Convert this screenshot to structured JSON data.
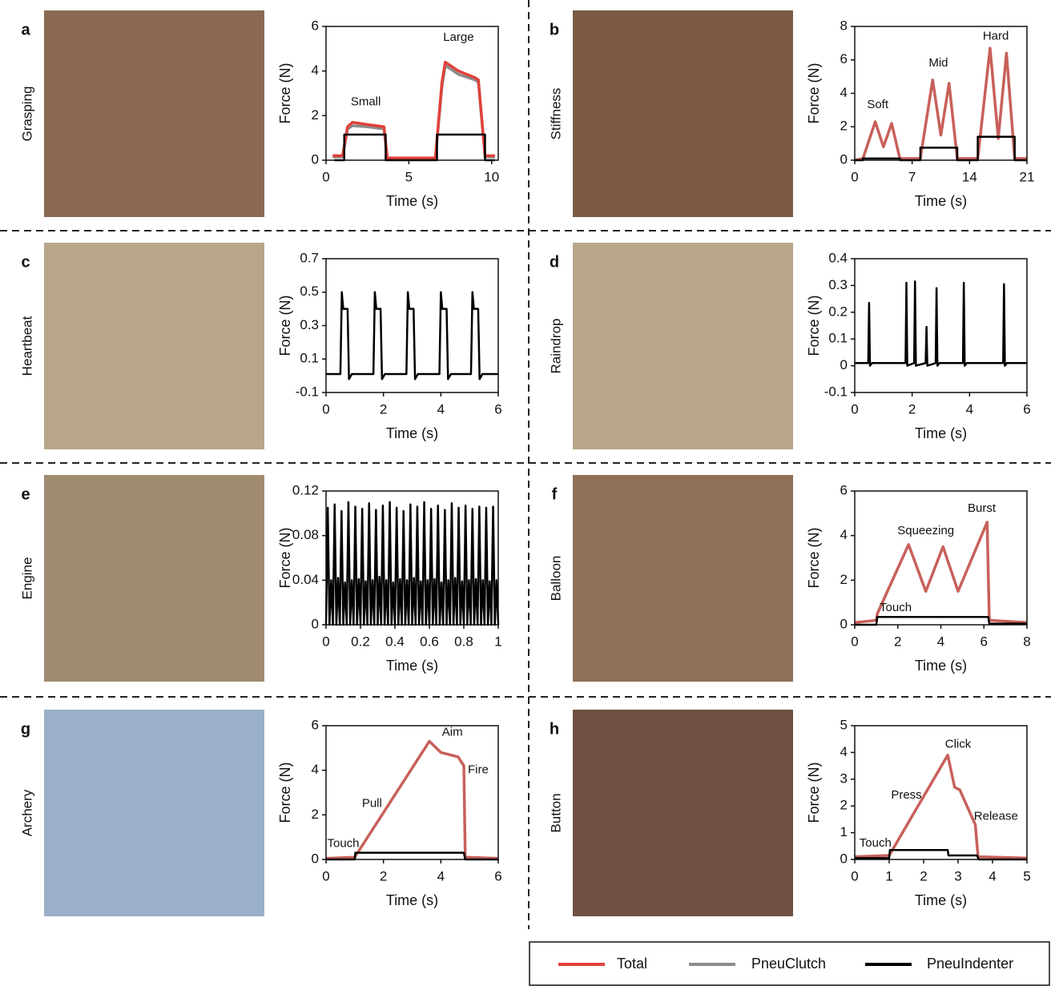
{
  "chart_data": [
    {
      "type": "line",
      "panel": "a",
      "label": "Grasping",
      "xlabel": "Time (s)",
      "ylabel": "Force (N)",
      "xlim": [
        0,
        10.4
      ],
      "xticks": [
        0,
        5,
        10
      ],
      "ylim": [
        0,
        6
      ],
      "yticks": [
        0,
        2,
        4,
        6
      ],
      "series": [
        {
          "color": "#8c8c8c",
          "x": [
            0.4,
            0.9,
            1.0,
            1.3,
            1.6,
            2.5,
            3.5,
            3.7,
            5.6,
            6.0,
            6.6,
            7.0,
            7.2,
            8.0,
            9.0,
            9.2,
            9.6,
            10.2
          ],
          "values": [
            0.15,
            0.15,
            0.15,
            1.4,
            1.55,
            1.5,
            1.4,
            0.05,
            0.05,
            0.05,
            0.05,
            3.3,
            4.25,
            3.85,
            3.6,
            3.5,
            0.15,
            0.15
          ]
        },
        {
          "color": "#e0413a",
          "x": [
            0.4,
            0.9,
            1.0,
            1.3,
            1.6,
            2.5,
            3.5,
            3.7,
            5.6,
            6.0,
            6.6,
            7.0,
            7.2,
            8.0,
            9.0,
            9.2,
            9.6,
            10.2
          ],
          "values": [
            0.2,
            0.2,
            0.2,
            1.5,
            1.7,
            1.6,
            1.5,
            0.1,
            0.1,
            0.1,
            0.1,
            3.5,
            4.4,
            4.0,
            3.7,
            3.6,
            0.2,
            0.2
          ]
        },
        {
          "color": "#000000",
          "x": [
            0.5,
            1.1,
            1.1,
            3.6,
            3.6,
            6.7,
            6.7,
            9.6,
            9.6,
            10.2
          ],
          "values": [
            0,
            0,
            1.15,
            1.15,
            0,
            0,
            1.15,
            1.15,
            0,
            0
          ]
        }
      ],
      "annotations": [
        {
          "text": "Small",
          "x": 2.4,
          "y": 2.6
        },
        {
          "text": "Large",
          "x": 8,
          "y": 5.5
        }
      ]
    },
    {
      "type": "line",
      "panel": "b",
      "label": "Stiffness",
      "xlabel": "Time (s)",
      "ylabel": "Force (N)",
      "xlim": [
        0,
        21
      ],
      "xticks": [
        0,
        7,
        14,
        21
      ],
      "ylim": [
        0,
        8
      ],
      "yticks": [
        0,
        2,
        4,
        6,
        8
      ],
      "series": [
        {
          "color": "#c8605a",
          "x": [
            0,
            1,
            2.5,
            3.5,
            4.5,
            5.5,
            8,
            9.5,
            10.5,
            11.5,
            12.5,
            15,
            16.5,
            17.5,
            18.5,
            19.5,
            21
          ],
          "values": [
            0,
            0.1,
            2.3,
            0.8,
            2.2,
            0.1,
            0.1,
            4.8,
            1.5,
            4.6,
            0.1,
            0.1,
            6.7,
            1.3,
            6.4,
            0.1,
            0.1
          ]
        },
        {
          "color": "#000000",
          "x": [
            0,
            1,
            1,
            5.5,
            5.5,
            8,
            8,
            12.5,
            12.5,
            15,
            15,
            19.5,
            19.5,
            21
          ],
          "values": [
            0,
            0,
            0.1,
            0.1,
            0,
            0,
            0.75,
            0.75,
            0,
            0,
            1.4,
            1.4,
            0,
            0
          ]
        }
      ],
      "annotations": [
        {
          "text": "Soft",
          "x": 2.8,
          "y": 3.3
        },
        {
          "text": "Mid",
          "x": 10.2,
          "y": 5.8
        },
        {
          "text": "Hard",
          "x": 17.2,
          "y": 7.4
        }
      ]
    },
    {
      "type": "line",
      "panel": "c",
      "label": "Heartbeat",
      "xlabel": "Time (s)",
      "ylabel": "Force (N)",
      "xlim": [
        0,
        6
      ],
      "xticks": [
        0,
        2,
        4,
        6
      ],
      "ylim": [
        -0.1,
        0.7
      ],
      "yticks": [
        -0.1,
        0.1,
        0.3,
        0.5,
        0.7
      ],
      "series": [
        {
          "color": "#000000",
          "x": [
            0,
            0.5,
            0.55,
            0.6,
            0.75,
            0.8,
            0.9,
            1.65,
            1.7,
            1.75,
            1.9,
            1.95,
            2.05,
            2.8,
            2.85,
            2.9,
            3.05,
            3.1,
            3.2,
            3.95,
            4.0,
            4.05,
            4.2,
            4.25,
            4.35,
            5.05,
            5.1,
            5.15,
            5.3,
            5.35,
            5.45,
            6
          ],
          "values": [
            0.01,
            0.01,
            0.5,
            0.4,
            0.4,
            -0.02,
            0.01,
            0.01,
            0.5,
            0.4,
            0.4,
            -0.02,
            0.01,
            0.01,
            0.5,
            0.4,
            0.4,
            -0.02,
            0.01,
            0.01,
            0.5,
            0.4,
            0.4,
            -0.02,
            0.01,
            0.01,
            0.5,
            0.4,
            0.4,
            -0.02,
            0.01,
            0.01
          ]
        }
      ],
      "annotations": []
    },
    {
      "type": "line",
      "panel": "d",
      "label": "Raindrop",
      "xlabel": "Time (s)",
      "ylabel": "Force (N)",
      "xlim": [
        0,
        6
      ],
      "xticks": [
        0,
        2,
        4,
        6
      ],
      "ylim": [
        -0.1,
        0.4
      ],
      "yticks": [
        -0.1,
        0,
        0.1,
        0.2,
        0.3,
        0.4
      ],
      "series": [
        {
          "color": "#000000",
          "x": [
            0,
            0.47,
            0.5,
            0.53,
            0.6,
            1.77,
            1.8,
            1.83,
            2.07,
            2.1,
            2.13,
            2.47,
            2.5,
            2.53,
            2.82,
            2.85,
            2.88,
            2.95,
            3.77,
            3.8,
            3.83,
            3.9,
            5.17,
            5.2,
            5.23,
            5.3,
            6
          ],
          "values": [
            0.01,
            0.01,
            0.235,
            0,
            0.01,
            0.01,
            0.31,
            0,
            0.01,
            0.315,
            0,
            0.01,
            0.145,
            0,
            0.01,
            0.29,
            0,
            0.01,
            0.01,
            0.31,
            0,
            0.01,
            0.01,
            0.305,
            0,
            0.01,
            0.01
          ]
        }
      ],
      "annotations": []
    },
    {
      "type": "line",
      "panel": "e",
      "label": "Engine",
      "xlabel": "Time (s)",
      "ylabel": "Force (N)",
      "xlim": [
        0,
        1
      ],
      "xticks": [
        0,
        0.2,
        0.4,
        0.6,
        0.8,
        1
      ],
      "ylim": [
        0,
        0.12
      ],
      "yticks": [
        0,
        0.04,
        0.08,
        0.12
      ],
      "series": [
        {
          "color": "#000000",
          "x": [
            0,
            0.01,
            0.02,
            0.03,
            0.04,
            0.05,
            0.06,
            0.07,
            0.08,
            0.09,
            0.1,
            0.11,
            0.12,
            0.13,
            0.14,
            0.15,
            0.16,
            0.17,
            0.18,
            0.19,
            0.2,
            0.21,
            0.22,
            0.23,
            0.24,
            0.25,
            0.26,
            0.27,
            0.28,
            0.29,
            0.3,
            0.31,
            0.32,
            0.33,
            0.34,
            0.35,
            0.36,
            0.37,
            0.38,
            0.39,
            0.4,
            0.41,
            0.42,
            0.43,
            0.44,
            0.45,
            0.46,
            0.47,
            0.48,
            0.49,
            0.5,
            0.51,
            0.52,
            0.53,
            0.54,
            0.55,
            0.56,
            0.57,
            0.58,
            0.59,
            0.6,
            0.61,
            0.62,
            0.63,
            0.64,
            0.65,
            0.66,
            0.67,
            0.68,
            0.69,
            0.7,
            0.71,
            0.72,
            0.73,
            0.74,
            0.75,
            0.76,
            0.77,
            0.78,
            0.79,
            0.8,
            0.81,
            0.82,
            0.83,
            0.84,
            0.85,
            0.86,
            0.87,
            0.88,
            0.89,
            0.9,
            0.91,
            0.92,
            0.93,
            0.94,
            0.95,
            0.96,
            0.97,
            0.98,
            0.99,
            1
          ],
          "values": [
            0,
            0.105,
            0,
            0.04,
            0,
            0.108,
            0,
            0.042,
            0,
            0.102,
            0,
            0.038,
            0,
            0.11,
            0,
            0.04,
            0,
            0.106,
            0,
            0.041,
            0,
            0.104,
            0,
            0.039,
            0,
            0.109,
            0,
            0.04,
            0,
            0.103,
            0,
            0.043,
            0,
            0.107,
            0,
            0.04,
            0,
            0.11,
            0,
            0.038,
            0,
            0.105,
            0,
            0.041,
            0,
            0.102,
            0,
            0.04,
            0,
            0.108,
            0,
            0.042,
            0,
            0.106,
            0,
            0.039,
            0,
            0.11,
            0,
            0.04,
            0,
            0.104,
            0,
            0.041,
            0,
            0.107,
            0,
            0.038,
            0,
            0.103,
            0,
            0.04,
            0,
            0.109,
            0,
            0.042,
            0,
            0.105,
            0,
            0.039,
            0,
            0.107,
            0,
            0.04,
            0,
            0.104,
            0,
            0.041,
            0,
            0.106,
            0,
            0.04,
            0,
            0.105,
            0,
            0.039,
            0,
            0.106,
            0,
            0.04,
            0
          ]
        }
      ],
      "annotations": []
    },
    {
      "type": "line",
      "panel": "f",
      "label": "Balloon",
      "xlabel": "Time (s)",
      "ylabel": "Force (N)",
      "xlim": [
        0,
        8
      ],
      "xticks": [
        0,
        2,
        4,
        6,
        8
      ],
      "ylim": [
        0,
        6
      ],
      "yticks": [
        0,
        2,
        4,
        6
      ],
      "series": [
        {
          "color": "#c8605a",
          "x": [
            0,
            1,
            1.05,
            2.5,
            3.3,
            4.1,
            4.8,
            6.15,
            6.25,
            8
          ],
          "values": [
            0.1,
            0.2,
            0.5,
            3.6,
            1.5,
            3.5,
            1.5,
            4.6,
            0.2,
            0.1
          ]
        },
        {
          "color": "#000000",
          "x": [
            0,
            1,
            1.05,
            6.2,
            6.25,
            8
          ],
          "values": [
            0,
            0,
            0.35,
            0.35,
            0.05,
            0.05
          ]
        }
      ],
      "annotations": [
        {
          "text": "Touch",
          "x": 1.9,
          "y": 0.75
        },
        {
          "text": "Squeezing",
          "x": 3.3,
          "y": 4.2
        },
        {
          "text": "Burst",
          "x": 5.9,
          "y": 5.2
        }
      ]
    },
    {
      "type": "line",
      "panel": "g",
      "label": "Archery",
      "xlabel": "Time (s)",
      "ylabel": "Force (N)",
      "xlim": [
        0,
        6
      ],
      "xticks": [
        0,
        2,
        4,
        6
      ],
      "ylim": [
        0,
        6
      ],
      "yticks": [
        0,
        2,
        4,
        6
      ],
      "series": [
        {
          "color": "#c8605a",
          "x": [
            0,
            1,
            3.6,
            4.0,
            4.6,
            4.8,
            4.85,
            6
          ],
          "values": [
            0.05,
            0.1,
            5.3,
            4.8,
            4.6,
            4.2,
            0.1,
            0.05
          ]
        },
        {
          "color": "#000000",
          "x": [
            0,
            1,
            1.02,
            4.8,
            4.85,
            6
          ],
          "values": [
            0,
            0,
            0.3,
            0.3,
            0,
            0
          ]
        }
      ],
      "annotations": [
        {
          "text": "Touch",
          "x": 0.6,
          "y": 0.7
        },
        {
          "text": "Pull",
          "x": 1.6,
          "y": 2.5
        },
        {
          "text": "Aim",
          "x": 4.4,
          "y": 5.7
        },
        {
          "text": "Fire",
          "x": 5.3,
          "y": 4.0
        }
      ]
    },
    {
      "type": "line",
      "panel": "h",
      "label": "Button",
      "xlabel": "Time (s)",
      "ylabel": "Force (N)",
      "xlim": [
        0,
        5
      ],
      "xticks": [
        0,
        1,
        2,
        3,
        4,
        5
      ],
      "ylim": [
        0,
        5
      ],
      "yticks": [
        0,
        1,
        2,
        3,
        4,
        5
      ],
      "series": [
        {
          "color": "#c8605a",
          "x": [
            0,
            1,
            2.7,
            2.9,
            3.05,
            3.5,
            3.58,
            5
          ],
          "values": [
            0.1,
            0.15,
            3.9,
            2.7,
            2.6,
            1.3,
            0.1,
            0.05
          ]
        },
        {
          "color": "#000000",
          "x": [
            0,
            1,
            1.02,
            2.7,
            2.72,
            3.55,
            3.6,
            5
          ],
          "values": [
            0.05,
            0.05,
            0.35,
            0.35,
            0.15,
            0.15,
            0,
            0
          ]
        }
      ],
      "annotations": [
        {
          "text": "Touch",
          "x": 0.6,
          "y": 0.6
        },
        {
          "text": "Press",
          "x": 1.5,
          "y": 2.4
        },
        {
          "text": "Click",
          "x": 3.0,
          "y": 4.3
        },
        {
          "text": "Release",
          "x": 4.1,
          "y": 1.6
        }
      ]
    }
  ],
  "legend": {
    "items": [
      {
        "name": "Total",
        "color": "#e0413a"
      },
      {
        "name": "PneuClutch",
        "color": "#8c8c8c"
      },
      {
        "name": "PneuIndenter",
        "color": "#000000"
      }
    ]
  }
}
